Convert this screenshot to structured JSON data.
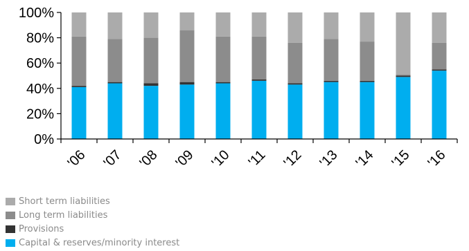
{
  "colors": {
    "short_term": "#ababab",
    "long_term": "#8c8c8c",
    "provisions": "#333333",
    "capital": "#00aeef",
    "axis": "#000000"
  },
  "legend": {
    "items": [
      {
        "label": "Short term liabilities",
        "color": "#ababab"
      },
      {
        "label": "Long term liabilities",
        "color": "#8c8c8c"
      },
      {
        "label": "Provisions",
        "color": "#333333"
      },
      {
        "label": "Capital & reserves/minority interest",
        "color": "#00aeef"
      }
    ]
  },
  "chart_data": {
    "type": "bar",
    "stacked": true,
    "percent": true,
    "categories": [
      "'06",
      "'07",
      "'08",
      "'09",
      "'10",
      "'11",
      "'12",
      "'13",
      "'14",
      "'15",
      "'16"
    ],
    "y_ticks": [
      "0%",
      "20%",
      "40%",
      "60%",
      "80%",
      "100%"
    ],
    "ylim": [
      0,
      100
    ],
    "grid": false,
    "legend_position": "bottom-left",
    "series": [
      {
        "name": "Capital & reserves/minority interest",
        "color": "#00aeef",
        "values": [
          41,
          44,
          42,
          43,
          44,
          46,
          43,
          45,
          45,
          49,
          54
        ]
      },
      {
        "name": "Provisions",
        "color": "#333333",
        "values": [
          1,
          1,
          2,
          2,
          1,
          1,
          1,
          1,
          1,
          1,
          1
        ]
      },
      {
        "name": "Long term liabilities",
        "color": "#8c8c8c",
        "values": [
          39,
          34,
          36,
          41,
          36,
          34,
          32,
          33,
          31,
          1,
          21
        ]
      },
      {
        "name": "Short term liabilities",
        "color": "#ababab",
        "values": [
          19,
          21,
          20,
          14,
          19,
          19,
          24,
          21,
          23,
          49,
          24
        ]
      }
    ]
  }
}
